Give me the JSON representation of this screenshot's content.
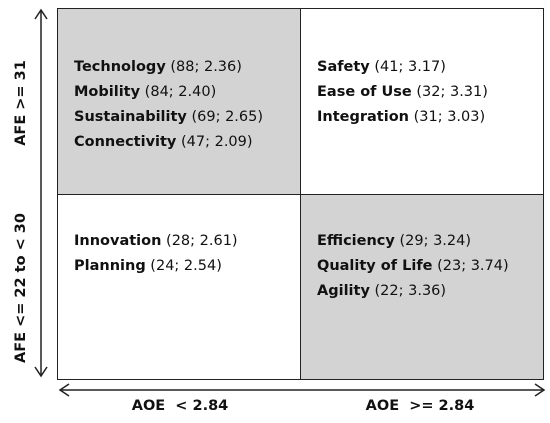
{
  "colors": {
    "shaded": "#d3d3d3",
    "plain": "#ffffff",
    "line": "#222222"
  },
  "y_axis": {
    "top_label": "AFE >= 31",
    "bottom_label": "AFE <= 22 to < 30"
  },
  "x_axis": {
    "left_label": "AOE  < 2.84",
    "right_label": "AOE  >= 2.84"
  },
  "quadrants": {
    "top_left": {
      "shaded": true,
      "items": [
        {
          "name": "Technology",
          "stats": " (88; 2.36)"
        },
        {
          "name": "Mobility",
          "stats": " (84; 2.40)"
        },
        {
          "name": "Sustainability",
          "stats": " (69; 2.65)"
        },
        {
          "name": "Connectivity",
          "stats": " (47; 2.09)"
        }
      ]
    },
    "top_right": {
      "shaded": false,
      "items": [
        {
          "name": "Safety",
          "stats": " (41; 3.17)"
        },
        {
          "name": "Ease of Use",
          "stats": " (32; 3.31)"
        },
        {
          "name": "Integration",
          "stats": " (31; 3.03)"
        }
      ]
    },
    "bottom_left": {
      "shaded": false,
      "items": [
        {
          "name": "Innovation",
          "stats": " (28; 2.61)"
        },
        {
          "name": "Planning",
          "stats": " (24; 2.54)"
        }
      ]
    },
    "bottom_right": {
      "shaded": true,
      "items": [
        {
          "name": "Efficiency",
          "stats": " (29; 3.24)"
        },
        {
          "name": "Quality of Life",
          "stats": " (23; 3.74)"
        },
        {
          "name": "Agility",
          "stats": " (22; 3.36)"
        }
      ]
    }
  }
}
